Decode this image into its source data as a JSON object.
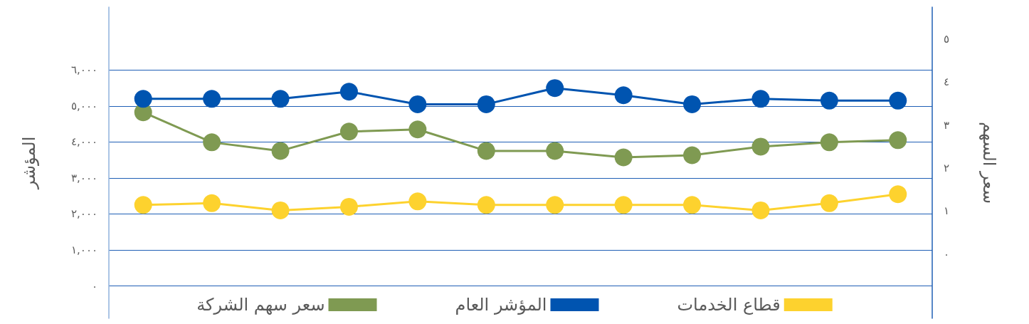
{
  "chart_data": {
    "type": "line",
    "ylabel": "المؤشر",
    "y2label": "سعر السهم",
    "categories": [
      null,
      null,
      null,
      null,
      null,
      null,
      null,
      null,
      null,
      null,
      null,
      null
    ],
    "series": [
      {
        "name": "سعر سهم الشركة",
        "color": "#7f9a52",
        "axis": "y2",
        "values": [
          3.3,
          2.6,
          2.4,
          2.85,
          2.9,
          2.4,
          2.4,
          2.25,
          2.3,
          2.5,
          2.6,
          2.65
        ]
      },
      {
        "name": "المؤشر العام",
        "color": "#0054b0",
        "values": [
          5200,
          5200,
          5200,
          5400,
          5050,
          5050,
          5500,
          5300,
          5050,
          5200,
          5150,
          5150
        ]
      },
      {
        "name": "قطاع الخدمات",
        "color": "#fdd22e",
        "values": [
          2250,
          2300,
          2100,
          2200,
          2350,
          2250,
          2250,
          2250,
          2250,
          2100,
          2300,
          2550
        ]
      }
    ],
    "ylim": [
      -900,
      7750
    ],
    "yticks": [
      {
        "value": 0,
        "label": "٠"
      },
      {
        "value": 1000,
        "label": "١,٠٠٠"
      },
      {
        "value": 2000,
        "label": "٢,٠٠٠"
      },
      {
        "value": 3000,
        "label": "٣,٠٠٠"
      },
      {
        "value": 4000,
        "label": "٤,٠٠٠"
      },
      {
        "value": 5000,
        "label": "٥,٠٠٠"
      },
      {
        "value": 6000,
        "label": "٦,٠٠٠"
      }
    ],
    "y2lim": [
      -1.5,
      5.75
    ],
    "y2ticks": [
      {
        "value": 0,
        "label": "٠"
      },
      {
        "value": 1,
        "label": "١"
      },
      {
        "value": 2,
        "label": "٢"
      },
      {
        "value": 3,
        "label": "٣"
      },
      {
        "value": 4,
        "label": "٤"
      },
      {
        "value": 5,
        "label": "٥"
      }
    ],
    "grid": "y",
    "legend": "bottom",
    "marker": "circle",
    "line_style": "solid"
  }
}
